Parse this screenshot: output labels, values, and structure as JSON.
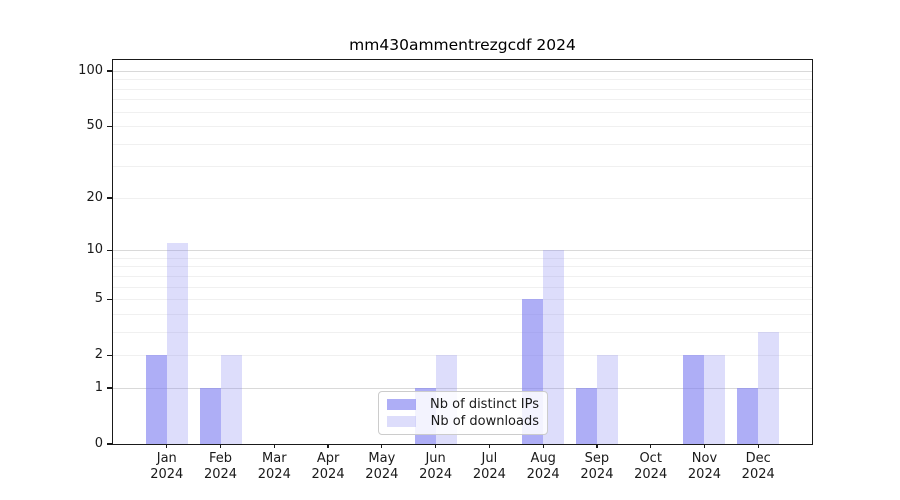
{
  "title": "mm430ammentrezgcdf 2024",
  "chart_data": {
    "type": "bar",
    "title": "mm430ammentrezgcdf 2024",
    "x_categories": [
      "Jan",
      "Feb",
      "Mar",
      "Apr",
      "May",
      "Jun",
      "Jul",
      "Aug",
      "Sep",
      "Oct",
      "Nov",
      "Dec"
    ],
    "x_year_label": "2024",
    "series": [
      {
        "name": "Nb of distinct IPs",
        "values": [
          2,
          1,
          0,
          0,
          0,
          1,
          0,
          5,
          1,
          0,
          2,
          1
        ],
        "color": "rgba(124,124,240,0.62)"
      },
      {
        "name": "Nb of downloads",
        "values": [
          11,
          2,
          0,
          0,
          0,
          2,
          0,
          10,
          2,
          0,
          2,
          3
        ],
        "color": "rgba(124,124,240,0.26)"
      }
    ],
    "y_axis": {
      "scale": "log10(1+x)",
      "ticks": [
        0,
        1,
        2,
        5,
        10,
        20,
        50,
        100
      ],
      "range": [
        0,
        115
      ],
      "major_gridlines": [
        1,
        10,
        100
      ],
      "minor_gridlines": [
        2,
        3,
        4,
        5,
        6,
        7,
        8,
        9,
        20,
        30,
        40,
        50,
        60,
        70,
        80,
        90
      ]
    },
    "legend": {
      "position": "lower center",
      "entries": [
        "Nb of distinct IPs",
        "Nb of downloads"
      ]
    },
    "colors": {
      "grid_major": "#d9d9d9",
      "grid_minor": "#f0f0f0",
      "axis": "#1a1a1a",
      "text": "#1a1a1a",
      "background": "#ffffff",
      "legend_border": "#cccccc",
      "legend_bg": "rgba(255,255,255,0.85)"
    }
  }
}
